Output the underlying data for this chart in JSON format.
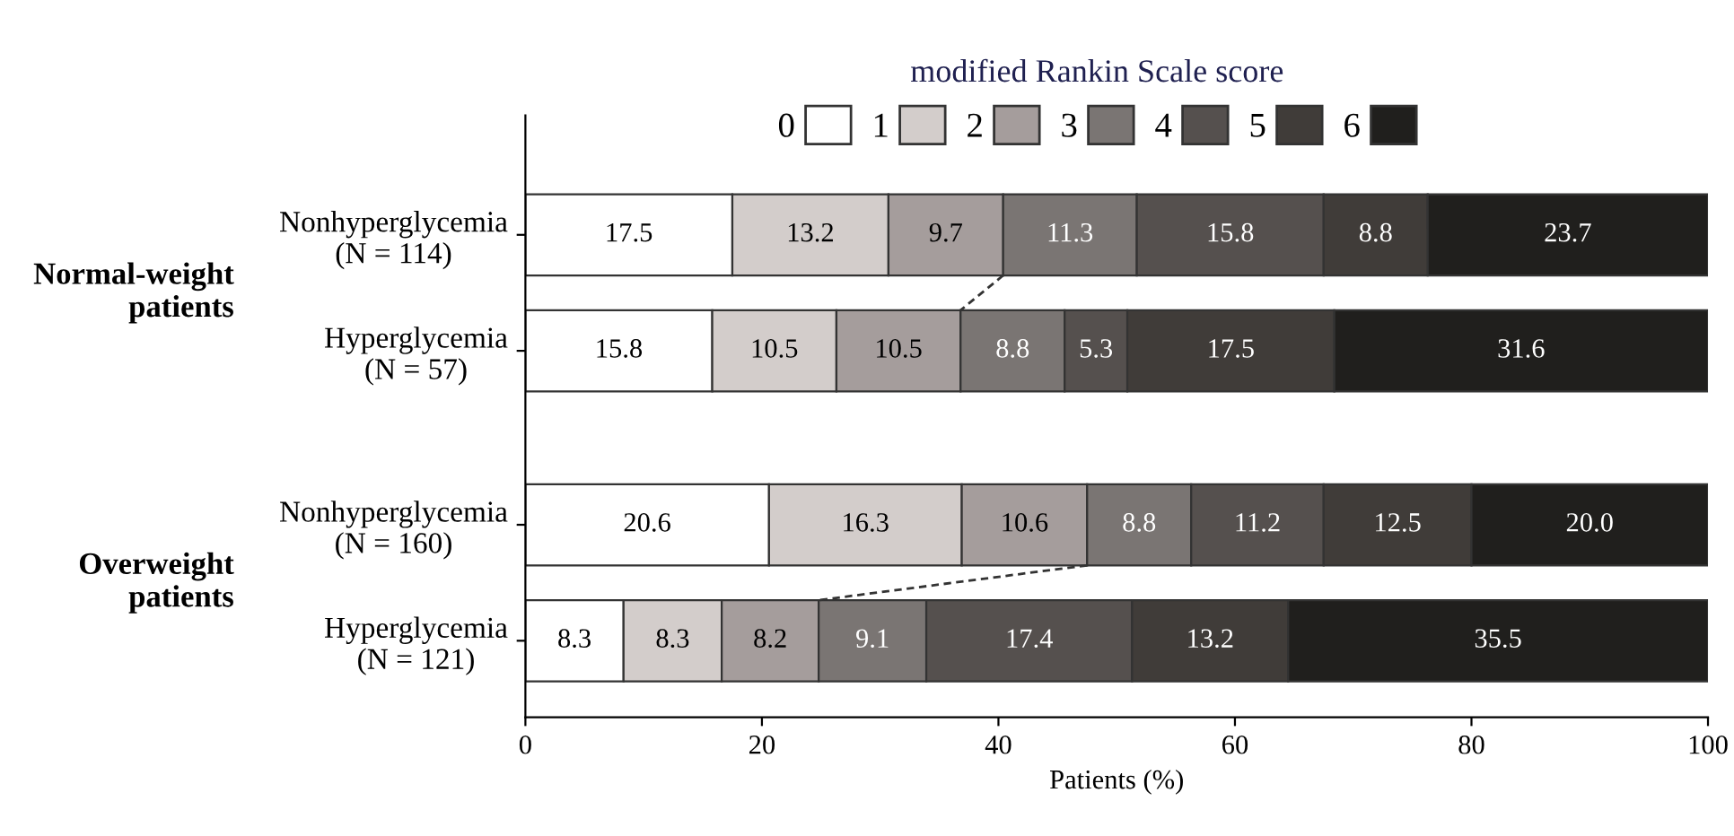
{
  "chart_data": {
    "type": "bar",
    "orientation": "horizontal",
    "stacked": true,
    "legend_title": "modified Rankin Scale score",
    "xlabel": "Patients (%)",
    "categories": [
      "Nonhyperglycemia\n(N = 114)",
      "Hyperglycemia\n(N = 57)",
      "Nonhyperglycemia\n(N = 160)",
      "Hyperglycemia\n(N = 121)"
    ],
    "annotations": [
      "Normal-weight\npatients",
      "Overweight\npatients"
    ],
    "series": [
      {
        "name": "0",
        "color": "#ffffff",
        "values": [
          17.5,
          15.8,
          20.6,
          8.3
        ]
      },
      {
        "name": "1",
        "color": "#d3cdcb",
        "values": [
          13.2,
          10.5,
          16.3,
          8.3
        ]
      },
      {
        "name": "2",
        "color": "#a59d9c",
        "values": [
          9.7,
          10.5,
          10.6,
          8.2
        ]
      },
      {
        "name": "3",
        "color": "#7a7573",
        "values": [
          11.3,
          8.8,
          8.8,
          9.1
        ]
      },
      {
        "name": "4",
        "color": "#55504e",
        "values": [
          15.8,
          5.3,
          11.2,
          17.4
        ]
      },
      {
        "name": "5",
        "color": "#403c39",
        "values": [
          8.8,
          17.5,
          12.5,
          13.2
        ]
      },
      {
        "name": "6",
        "color": "#201f1d",
        "values": [
          23.7,
          31.6,
          20.0,
          35.5
        ],
        "value_labels": [
          "23.7",
          "31.6",
          "20.0",
          "35.5"
        ]
      }
    ],
    "xlim": [
      0,
      100
    ],
    "xticks": [
      0,
      20,
      40,
      60,
      80,
      100
    ],
    "data_labels": true,
    "legend": "top right",
    "grid": false
  }
}
